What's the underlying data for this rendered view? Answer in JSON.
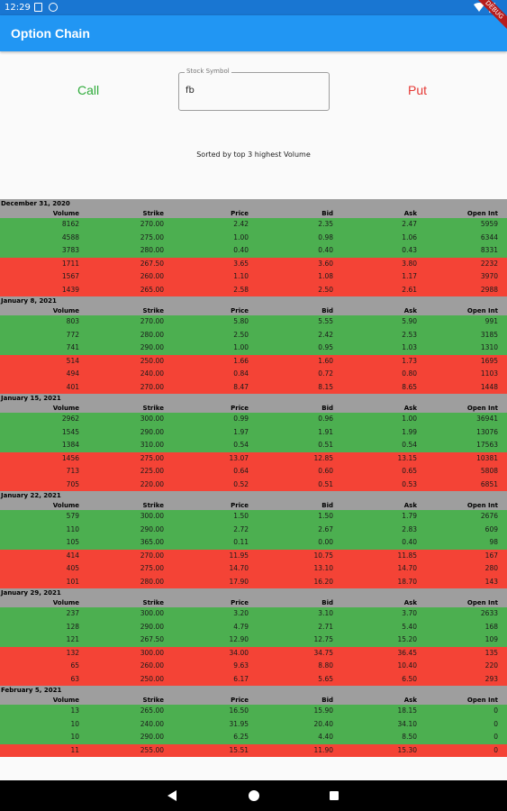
{
  "status_bar": {
    "time": "12:29"
  },
  "debug_banner": "DEBUG",
  "app_bar": {
    "title": "Option Chain"
  },
  "controls": {
    "call_label": "Call",
    "put_label": "Put",
    "symbol_field_label": "Stock Symbol",
    "symbol_value": "fb",
    "sort_text": "Sorted by top 3 highest Volume"
  },
  "columns": [
    "Volume",
    "Strike",
    "Price",
    "Bid",
    "Ask",
    "Open Int"
  ],
  "groups": [
    {
      "date": "December 31, 2020",
      "calls": [
        [
          "8162",
          "270.00",
          "2.42",
          "2.35",
          "2.47",
          "5959"
        ],
        [
          "4588",
          "275.00",
          "1.00",
          "0.98",
          "1.06",
          "6344"
        ],
        [
          "3783",
          "280.00",
          "0.40",
          "0.40",
          "0.43",
          "8331"
        ]
      ],
      "puts": [
        [
          "1711",
          "267.50",
          "3.65",
          "3.60",
          "3.80",
          "2232"
        ],
        [
          "1567",
          "260.00",
          "1.10",
          "1.08",
          "1.17",
          "3970"
        ],
        [
          "1439",
          "265.00",
          "2.58",
          "2.50",
          "2.61",
          "2988"
        ]
      ]
    },
    {
      "date": "January 8, 2021",
      "calls": [
        [
          "803",
          "270.00",
          "5.80",
          "5.55",
          "5.90",
          "991"
        ],
        [
          "772",
          "280.00",
          "2.50",
          "2.42",
          "2.53",
          "3185"
        ],
        [
          "741",
          "290.00",
          "1.00",
          "0.95",
          "1.03",
          "1310"
        ]
      ],
      "puts": [
        [
          "514",
          "250.00",
          "1.66",
          "1.60",
          "1.73",
          "1695"
        ],
        [
          "494",
          "240.00",
          "0.84",
          "0.72",
          "0.80",
          "1103"
        ],
        [
          "401",
          "270.00",
          "8.47",
          "8.15",
          "8.65",
          "1448"
        ]
      ]
    },
    {
      "date": "January 15, 2021",
      "calls": [
        [
          "2962",
          "300.00",
          "0.99",
          "0.96",
          "1.00",
          "36941"
        ],
        [
          "1545",
          "290.00",
          "1.97",
          "1.91",
          "1.99",
          "13076"
        ],
        [
          "1384",
          "310.00",
          "0.54",
          "0.51",
          "0.54",
          "17563"
        ]
      ],
      "puts": [
        [
          "1456",
          "275.00",
          "13.07",
          "12.85",
          "13.15",
          "10381"
        ],
        [
          "713",
          "225.00",
          "0.64",
          "0.60",
          "0.65",
          "5808"
        ],
        [
          "705",
          "220.00",
          "0.52",
          "0.51",
          "0.53",
          "6851"
        ]
      ]
    },
    {
      "date": "January 22, 2021",
      "calls": [
        [
          "579",
          "300.00",
          "1.50",
          "1.50",
          "1.79",
          "2676"
        ],
        [
          "110",
          "290.00",
          "2.72",
          "2.67",
          "2.83",
          "609"
        ],
        [
          "105",
          "365.00",
          "0.11",
          "0.00",
          "0.40",
          "98"
        ]
      ],
      "puts": [
        [
          "414",
          "270.00",
          "11.95",
          "10.75",
          "11.85",
          "167"
        ],
        [
          "405",
          "275.00",
          "14.70",
          "13.10",
          "14.70",
          "280"
        ],
        [
          "101",
          "280.00",
          "17.90",
          "16.20",
          "18.70",
          "143"
        ]
      ]
    },
    {
      "date": "January 29, 2021",
      "calls": [
        [
          "237",
          "300.00",
          "3.20",
          "3.10",
          "3.70",
          "2633"
        ],
        [
          "128",
          "290.00",
          "4.79",
          "2.71",
          "5.40",
          "168"
        ],
        [
          "121",
          "267.50",
          "12.90",
          "12.75",
          "15.20",
          "109"
        ]
      ],
      "puts": [
        [
          "132",
          "300.00",
          "34.00",
          "34.75",
          "36.45",
          "135"
        ],
        [
          "65",
          "260.00",
          "9.63",
          "8.80",
          "10.40",
          "220"
        ],
        [
          "63",
          "250.00",
          "6.17",
          "5.65",
          "6.50",
          "293"
        ]
      ]
    },
    {
      "date": "February 5, 2021",
      "calls": [
        [
          "13",
          "265.00",
          "16.50",
          "15.90",
          "18.15",
          "0"
        ],
        [
          "10",
          "240.00",
          "31.95",
          "20.40",
          "34.10",
          "0"
        ],
        [
          "10",
          "290.00",
          "6.25",
          "4.40",
          "8.50",
          "0"
        ]
      ],
      "puts": [
        [
          "11",
          "255.00",
          "15.51",
          "11.90",
          "15.30",
          "0"
        ]
      ]
    }
  ]
}
